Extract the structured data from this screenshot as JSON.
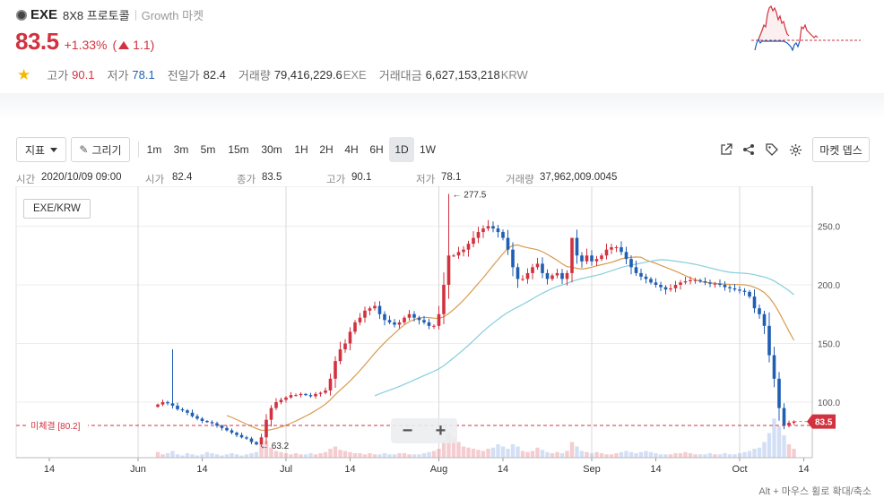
{
  "header": {
    "symbol": "EXE",
    "korean_name": "8X8 프로토콜",
    "market": "Growth 마켓",
    "price": "83.5",
    "change_pct": "+1.33%",
    "change_open": "(",
    "change_abs": "1.1",
    "change_close": ")",
    "stats": {
      "high_label": "고가",
      "high": "90.1",
      "low_label": "저가",
      "low": "78.1",
      "prev_label": "전일가",
      "prev": "82.4",
      "volume_label": "거래량",
      "volume": "79,416,229.6",
      "volume_unit": "EXE",
      "amount_label": "거래대금",
      "amount": "6,627,153,218",
      "amount_unit": "KRW"
    },
    "colors": {
      "up": "#d2323f",
      "down": "#1f5eb3"
    }
  },
  "toolbar": {
    "indicator": "지표",
    "draw": "그리기",
    "timeframes": [
      "1m",
      "3m",
      "5m",
      "15m",
      "30m",
      "1H",
      "2H",
      "4H",
      "6H",
      "1D",
      "1W"
    ],
    "active_timeframe": "1D",
    "market_depth": "마켓 뎁스",
    "icons": [
      "external-link-icon",
      "share-icon",
      "tag-icon",
      "gear-icon"
    ]
  },
  "ohlc_bar": {
    "time_label": "시간",
    "time": "2020/10/09 09:00",
    "open_label": "시가",
    "open": "82.4",
    "close_label": "종가",
    "close": "83.5",
    "high_label": "고가",
    "high": "90.1",
    "low_label": "저가",
    "low": "78.1",
    "volume_label": "거래량",
    "volume": "37,962,009.0045"
  },
  "chart_data": {
    "type": "candlestick",
    "pair": "EXE/KRW",
    "y_ticks": [
      "250.0",
      "200.0",
      "150.0",
      "100.0"
    ],
    "ylim": [
      46,
      266
    ],
    "x_labels": [
      "14",
      "Jun",
      "14",
      "Jul",
      "14",
      "Aug",
      "14",
      "Sep",
      "14",
      "Oct",
      "14"
    ],
    "x_label_days": [
      -18,
      0,
      13,
      30,
      43,
      61,
      74,
      92,
      105,
      122,
      135
    ],
    "annotations": {
      "max": "← 277.5",
      "min": "← 63.2"
    },
    "unfilled_label": "미체결 [80.2]",
    "unfilled_value": 80.2,
    "last_price_label": "83.5",
    "last_price": 83.5,
    "closes": [
      98,
      100,
      99,
      97,
      94,
      93,
      91,
      88,
      86,
      84,
      83,
      82,
      80,
      78,
      76,
      74,
      72,
      70,
      69,
      66,
      64,
      70,
      85,
      95,
      100,
      102,
      104,
      106,
      106,
      107,
      106,
      105,
      107,
      108,
      110,
      120,
      135,
      145,
      150,
      160,
      168,
      172,
      178,
      180,
      182,
      175,
      170,
      168,
      166,
      168,
      172,
      175,
      172,
      170,
      168,
      165,
      165,
      175,
      200,
      225,
      225,
      228,
      230,
      235,
      240,
      245,
      248,
      250,
      248,
      245,
      240,
      230,
      215,
      205,
      205,
      210,
      215,
      218,
      210,
      205,
      208,
      210,
      205,
      210,
      240,
      225,
      220,
      225,
      220,
      222,
      225,
      230,
      232,
      232,
      228,
      222,
      215,
      210,
      207,
      205,
      202,
      200,
      198,
      196,
      197,
      200,
      202,
      203,
      204,
      204,
      203,
      202,
      201,
      201,
      200,
      198,
      197,
      196,
      195,
      194,
      190,
      180,
      175,
      165,
      140,
      120,
      95,
      80,
      82.4,
      83.5
    ],
    "volumes": [
      5,
      3,
      4,
      6,
      3,
      2,
      4,
      3,
      2,
      3,
      5,
      4,
      3,
      2,
      3,
      4,
      3,
      2,
      3,
      4,
      5,
      12,
      15,
      9,
      6,
      5,
      4,
      3,
      4,
      3,
      3,
      4,
      3,
      4,
      5,
      8,
      10,
      7,
      6,
      5,
      4,
      4,
      3,
      4,
      3,
      3,
      4,
      3,
      3,
      4,
      4,
      3,
      3,
      3,
      4,
      5,
      6,
      8,
      15,
      22,
      18,
      14,
      10,
      9,
      8,
      7,
      6,
      8,
      9,
      12,
      10,
      8,
      12,
      10,
      6,
      5,
      6,
      9,
      7,
      5,
      4,
      5,
      4,
      6,
      14,
      10,
      6,
      5,
      4,
      5,
      4,
      3,
      3,
      4,
      5,
      6,
      5,
      4,
      5,
      6,
      5,
      4,
      3,
      3,
      3,
      4,
      4,
      5,
      4,
      3,
      3,
      3,
      4,
      3,
      3,
      4,
      3,
      3,
      4,
      5,
      6,
      8,
      9,
      14,
      22,
      35,
      28,
      20,
      12,
      8
    ],
    "grid": true
  },
  "footer": {
    "hint": "Alt + 마우스 휠로 확대/축소"
  }
}
